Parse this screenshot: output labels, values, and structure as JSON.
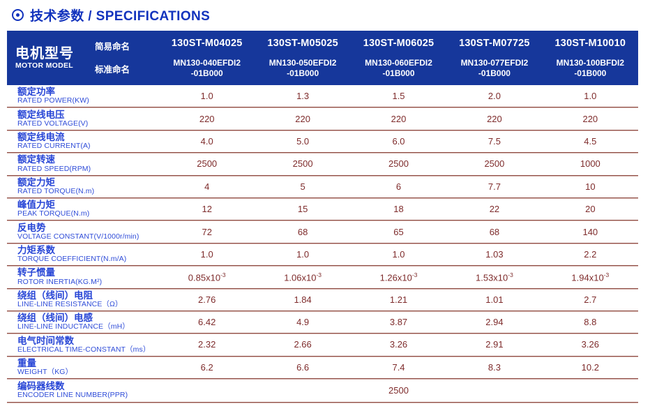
{
  "page": {
    "title": "技术参数 / SPECIFICATIONS"
  },
  "colors": {
    "header_bg": "#16379b",
    "title_blue": "#1233bd",
    "label_blue": "#2846d6",
    "value_maroon": "#7e2b2b",
    "line_maroon": "#8f4c44"
  },
  "table": {
    "model_header": {
      "zh": "电机型号",
      "en": "MOTOR MODEL",
      "simple_label": "简易命名",
      "standard_label": "标准命名"
    },
    "columns": [
      {
        "simple": "130ST-M04025",
        "standard": "MN130-040EFDI2\n-01B000"
      },
      {
        "simple": "130ST-M05025",
        "standard": "MN130-050EFDI2\n-01B000"
      },
      {
        "simple": "130ST-M06025",
        "standard": "MN130-060EFDI2\n-01B000"
      },
      {
        "simple": "130ST-M07725",
        "standard": "MN130-077EFDI2\n-01B000"
      },
      {
        "simple": "130ST-M10010",
        "standard": "MN130-100BFDI2\n-01B000"
      }
    ],
    "rows": [
      {
        "zh": "额定功率",
        "en": "RATED POWER(KW)",
        "values": [
          "1.0",
          "1.3",
          "1.5",
          "2.0",
          "1.0"
        ]
      },
      {
        "zh": "额定线电压",
        "en": "RATED VOLTAGE(V)",
        "values": [
          "220",
          "220",
          "220",
          "220",
          "220"
        ]
      },
      {
        "zh": "额定线电流",
        "en": "RATED CURRENT(A)",
        "values": [
          "4.0",
          "5.0",
          "6.0",
          "7.5",
          "4.5"
        ]
      },
      {
        "zh": "额定转速",
        "en": "RATED SPEED(RPM)",
        "values": [
          "2500",
          "2500",
          "2500",
          "2500",
          "1000"
        ]
      },
      {
        "zh": "额定力矩",
        "en": "RATED TORQUE(N.m)",
        "values": [
          "4",
          "5",
          "6",
          "7.7",
          "10"
        ]
      },
      {
        "zh": "峰值力矩",
        "en": "PEAK TORQUE(N.m)",
        "values": [
          "12",
          "15",
          "18",
          "22",
          "20"
        ]
      },
      {
        "zh": "反电势",
        "en": "VOLTAGE CONSTANT(V/1000r/min)",
        "values": [
          "72",
          "68",
          "65",
          "68",
          "140"
        ]
      },
      {
        "zh": "力矩系数",
        "en": "TORQUE COEFFICIENT(N.m/A)",
        "values": [
          "1.0",
          "1.0",
          "1.0",
          "1.03",
          "2.2"
        ]
      },
      {
        "zh": "转子惯量",
        "en": "ROTOR INERTIA(KG.M²)",
        "values": [
          "0.85x10",
          "1.06x10",
          "1.26x10",
          "1.53x10",
          "1.94x10"
        ],
        "sup": "-3"
      },
      {
        "zh": "绕组（线间）电阻",
        "en": "LINE-LINE RESISTANCE（Ω）",
        "values": [
          "2.76",
          "1.84",
          "1.21",
          "1.01",
          "2.7"
        ]
      },
      {
        "zh": "绕组（线间）电感",
        "en": "LINE-LINE INDUCTANCE（mH）",
        "values": [
          "6.42",
          "4.9",
          "3.87",
          "2.94",
          "8.8"
        ]
      },
      {
        "zh": "电气时间常数",
        "en": "ELECTRICAL TIME-CONSTANT（ms）",
        "values": [
          "2.32",
          "2.66",
          "3.26",
          "2.91",
          "3.26"
        ]
      },
      {
        "zh": "重量",
        "en": "WEIGHT（KG）",
        "values": [
          "6.2",
          "6.6",
          "7.4",
          "8.3",
          "10.2"
        ]
      }
    ],
    "encoder_row": {
      "zh": "编码器线数",
      "en": "ENCODER LINE NUMBER(PPR)",
      "value": "2500"
    }
  }
}
